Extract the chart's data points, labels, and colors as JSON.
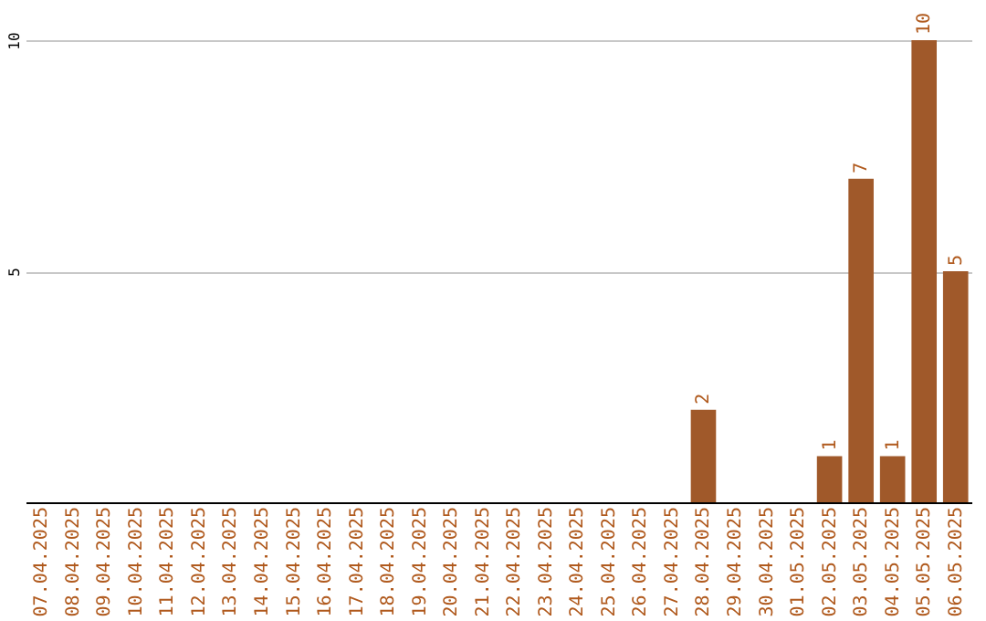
{
  "chart_data": {
    "type": "bar",
    "categories": [
      "07.04.2025",
      "08.04.2025",
      "09.04.2025",
      "10.04.2025",
      "11.04.2025",
      "12.04.2025",
      "13.04.2025",
      "14.04.2025",
      "15.04.2025",
      "16.04.2025",
      "17.04.2025",
      "18.04.2025",
      "19.04.2025",
      "20.04.2025",
      "21.04.2025",
      "22.04.2025",
      "23.04.2025",
      "24.04.2025",
      "25.04.2025",
      "26.04.2025",
      "27.04.2025",
      "28.04.2025",
      "29.04.2025",
      "30.04.2025",
      "01.05.2025",
      "02.05.2025",
      "03.05.2025",
      "04.05.2025",
      "05.05.2025",
      "06.05.2025"
    ],
    "values": [
      0,
      0,
      0,
      0,
      0,
      0,
      0,
      0,
      0,
      0,
      0,
      0,
      0,
      0,
      0,
      0,
      0,
      0,
      0,
      0,
      0,
      2,
      0,
      0,
      0,
      1,
      7,
      1,
      10,
      5
    ],
    "value_labels": [
      null,
      null,
      null,
      null,
      null,
      null,
      null,
      null,
      null,
      null,
      null,
      null,
      null,
      null,
      null,
      null,
      null,
      null,
      null,
      null,
      null,
      "2",
      null,
      null,
      null,
      "1",
      "7",
      "1",
      "10",
      "5"
    ],
    "color": "#a0592a",
    "ylim": [
      0,
      10
    ],
    "yticks": [
      5,
      10
    ],
    "grid": "y"
  }
}
